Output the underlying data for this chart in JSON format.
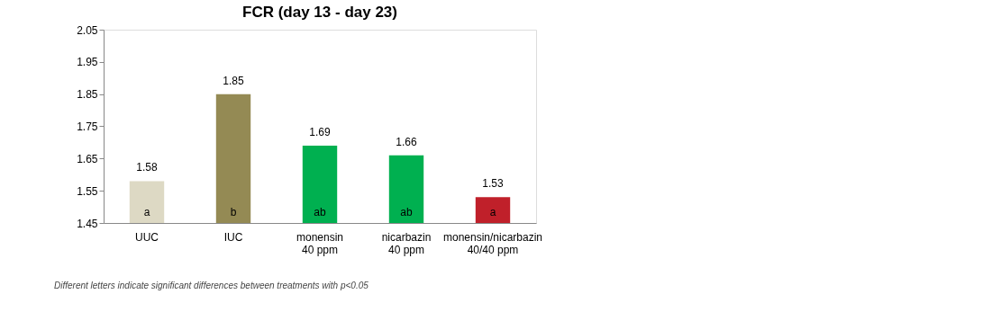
{
  "chart_data": {
    "type": "bar",
    "title": "FCR (day 13 - day 23)",
    "categories": [
      "UUC",
      "IUC",
      "monensin\n40 ppm",
      "nicarbazin\n40 ppm",
      "monensin/nicarbazin\n40/40 ppm"
    ],
    "values": [
      1.58,
      1.85,
      1.69,
      1.66,
      1.53
    ],
    "colors": [
      "#ddd9c4",
      "#948a54",
      "#00b050",
      "#00b050",
      "#c0202a"
    ],
    "ylim": [
      1.45,
      2.05
    ],
    "yticks": [
      1.45,
      1.55,
      1.65,
      1.75,
      1.85,
      1.95,
      2.05
    ],
    "data_labels": true,
    "grid": false,
    "annotations": [
      "a",
      "b",
      "ab",
      "ab",
      "a",
      "Different letters indicate significant differences between treatments with p<0.05"
    ]
  }
}
